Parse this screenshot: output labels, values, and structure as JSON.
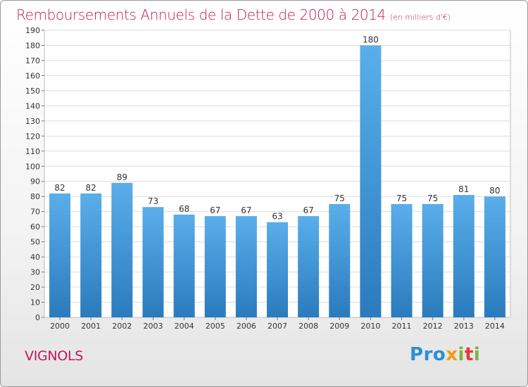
{
  "header": {
    "title": "Remboursements Annuels de la Dette de 2000 à 2014",
    "subtitle": "(en milliers d'€)"
  },
  "footer": {
    "commune": "VIGNOLS",
    "logo": "Proxiti"
  },
  "colors": {
    "title": "#c2185b",
    "bar_top": "#5aaeea",
    "bar_bottom": "#2a7bbd",
    "grid": "#dcdcdc"
  },
  "chart_data": {
    "type": "bar",
    "categories": [
      "2000",
      "2001",
      "2002",
      "2003",
      "2004",
      "2005",
      "2006",
      "2007",
      "2008",
      "2009",
      "2010",
      "2011",
      "2012",
      "2013",
      "2014"
    ],
    "values": [
      82,
      82,
      89,
      73,
      68,
      67,
      67,
      63,
      67,
      75,
      180,
      75,
      75,
      81,
      80
    ],
    "title": "Remboursements Annuels de la Dette de 2000 à 2014",
    "subtitle": "(en milliers d'€)",
    "ylim": [
      0,
      190
    ],
    "yticks": [
      0,
      10,
      20,
      30,
      40,
      50,
      60,
      70,
      80,
      90,
      100,
      110,
      120,
      130,
      140,
      150,
      160,
      170,
      180,
      190
    ],
    "grid": true,
    "legend": "none"
  }
}
